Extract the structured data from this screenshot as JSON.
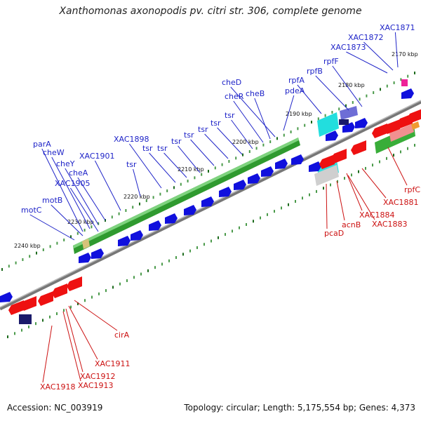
{
  "header": {
    "title": "Xanthomonas axonopodis pv. citri str. 306, complete genome"
  },
  "footer": {
    "accession": "Accession: NC_003919",
    "topology": "Topology: circular; Length: 5,175,554 bp; Genes: 4,373"
  },
  "scale": {
    "ticks": [
      "2170 kbp",
      "2180 kbp",
      "2190 kbp",
      "2200 kbp",
      "2210 kbp",
      "2220 kbp",
      "2230 kbp",
      "2240 kbp"
    ]
  },
  "genes_top": [
    "XAC1871",
    "XAC1872",
    "XAC1873",
    "rpfF",
    "rpfB",
    "rpfA",
    "pdeA",
    "cheB",
    "cheR",
    "cheD",
    "tsr",
    "tsr",
    "tsr",
    "tsr",
    "tsr",
    "tsr",
    "tsr",
    "XAC1898",
    "tsr",
    "XAC1901",
    "cheA",
    "cheY",
    "cheW",
    "parA",
    "XAC1905",
    "motB",
    "motC"
  ],
  "genes_bottom": [
    "rpfC",
    "XAC1881",
    "XAC1883",
    "XAC1884",
    "acnB",
    "pcaD",
    "cirA",
    "XAC1911",
    "XAC1912",
    "XAC1913",
    "XAC1918"
  ],
  "colors": {
    "label_forward": "#1f24c8",
    "label_reverse": "#cc1111",
    "cds_forward": "#1010dd",
    "cds_reverse": "#ee1111",
    "feature_green": "#33aa33",
    "feature_cyan": "#22dddd",
    "backbone": "#888888"
  }
}
